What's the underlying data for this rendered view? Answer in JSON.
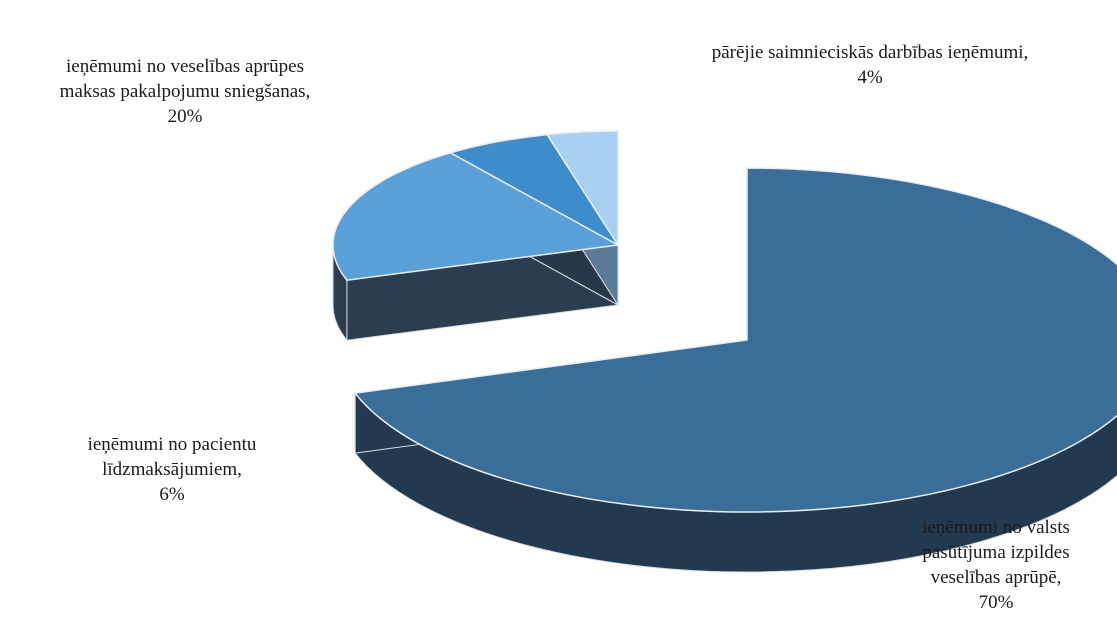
{
  "chart_data": {
    "type": "pie",
    "style": "3d-exploded",
    "slices": [
      {
        "label_lines": [
          "ieņēmumi no valsts",
          "pasūtījuma izpildes",
          "veselības aprūpē,",
          "70%"
        ],
        "value": 70,
        "top_color": "#3a6d98",
        "side_color": "#22394f"
      },
      {
        "label_lines": [
          "ieņēmumi no veselības aprūpes",
          "maksas pakalpojumu sniegšanas,",
          "20%"
        ],
        "value": 20,
        "top_color": "#5b9fd8",
        "side_color": "#2b3d4e"
      },
      {
        "label_lines": [
          "ieņēmumi no pacientu",
          "līdzmaksājumiem,",
          "6%"
        ],
        "value": 6,
        "top_color": "#3f8ccb",
        "side_color": "#26384a"
      },
      {
        "label_lines": [
          "pārējie saimnieciskās darbības ieņēmumi,",
          "4%"
        ],
        "value": 4,
        "top_color": "#a9d0f2",
        "side_color": "#5a7a96"
      }
    ]
  }
}
